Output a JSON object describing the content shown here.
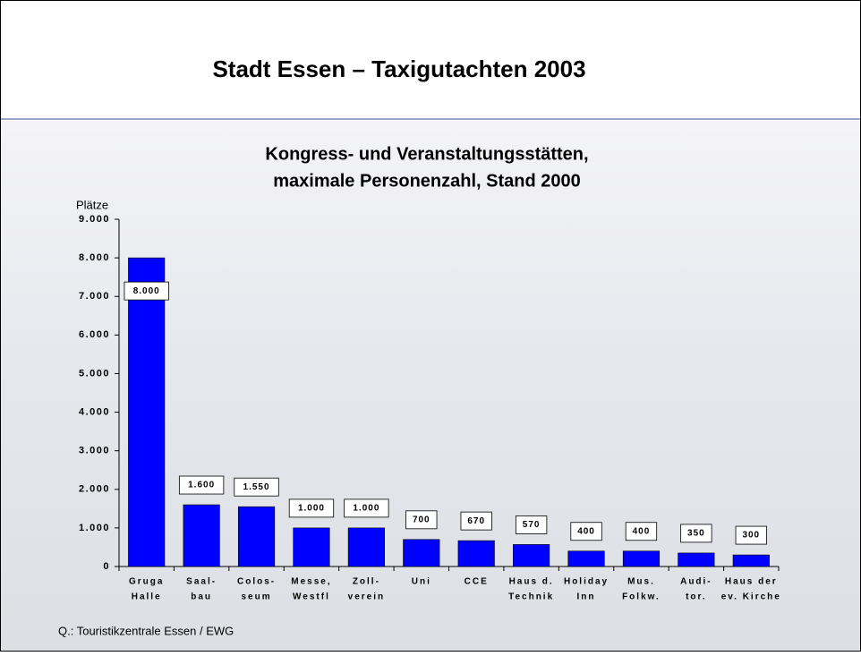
{
  "slide_title": "Stadt Essen – Taxigutachten 2003",
  "source": "Q.: Touristikzentrale Essen / EWG",
  "chart_data": {
    "type": "bar",
    "title": [
      "Kongress- und Veranstaltungsstätten,",
      "maximale Personenzahl, Stand 2000"
    ],
    "y_label": "Plätze",
    "categories": [
      [
        "Gruga",
        "Halle"
      ],
      [
        "Saal-",
        "bau"
      ],
      [
        "Colos-",
        "seum"
      ],
      [
        "Messe,",
        "Westfl"
      ],
      [
        "Zoll-",
        "verein"
      ],
      [
        "Uni"
      ],
      [
        "CCE"
      ],
      [
        "Haus d.",
        "Technik"
      ],
      [
        "Holiday",
        "Inn"
      ],
      [
        "Mus.",
        "Folkw."
      ],
      [
        "Audi-",
        "tor."
      ],
      [
        "Haus der",
        "ev. Kirche"
      ]
    ],
    "values": [
      8000,
      1600,
      1550,
      1000,
      1000,
      700,
      670,
      570,
      400,
      400,
      350,
      300
    ],
    "value_labels": [
      "8.000",
      "1.600",
      "1.550",
      "1.000",
      "1.000",
      "700",
      "670",
      "570",
      "400",
      "400",
      "350",
      "300"
    ],
    "color": "#0000ff",
    "ylim": [
      0,
      9000
    ],
    "yticks": [
      0,
      {
        "value": 1000,
        "label": "1.000"
      },
      {
        "value": 2000,
        "label": "2.000"
      },
      {
        "value": 3000,
        "label": "3.000"
      },
      {
        "value": 4000,
        "label": "4.000"
      },
      {
        "value": 5000,
        "label": "5.000"
      },
      {
        "value": 6000,
        "label": "6.000"
      },
      {
        "value": 7000,
        "label": "7.000"
      },
      {
        "value": 8000,
        "label": "8.000"
      },
      {
        "value": 9000,
        "label": "9.000"
      }
    ],
    "grid": false
  }
}
